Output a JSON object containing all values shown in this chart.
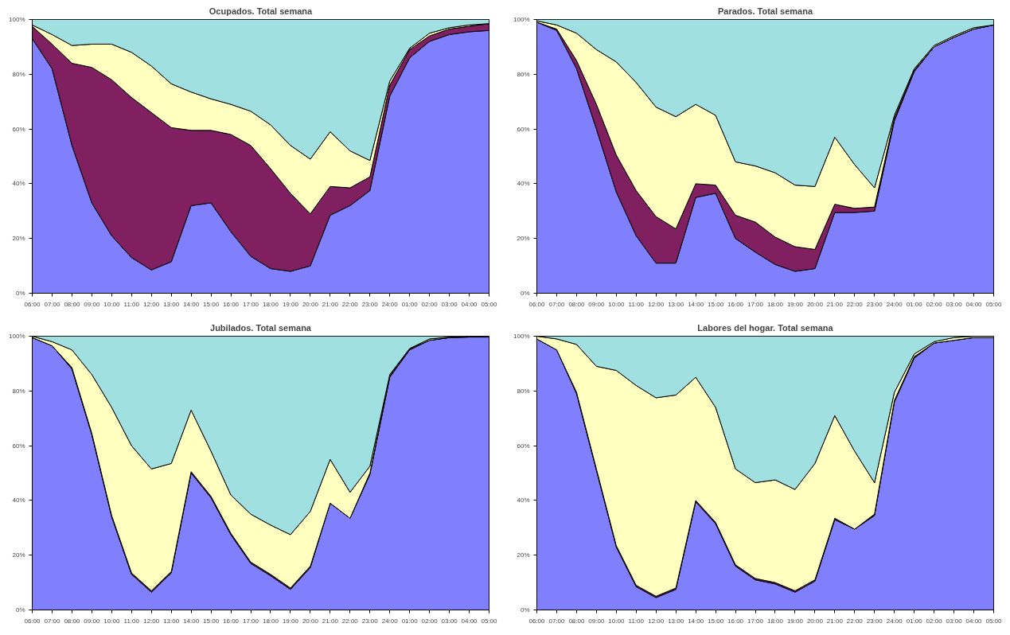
{
  "chart_data": [
    {
      "type": "area",
      "stacked": true,
      "title": "Ocupados. Total semana",
      "grid": false,
      "categories": [
        "06:00",
        "07:00",
        "08:00",
        "09:00",
        "10:00",
        "11:00",
        "12:00",
        "13:00",
        "14:00",
        "15:00",
        "16:00",
        "17:00",
        "18:00",
        "19:00",
        "20:00",
        "21:00",
        "22:00",
        "23:00",
        "24:00",
        "01:00",
        "02:00",
        "03:00",
        "04:00",
        "05:00"
      ],
      "ylim": [
        0,
        100
      ],
      "yticks": [
        {
          "value": 0,
          "label": "0%"
        },
        {
          "value": 20,
          "label": "20%"
        },
        {
          "value": 40,
          "label": "40%"
        },
        {
          "value": 60,
          "label": "60%"
        },
        {
          "value": 80,
          "label": "80%"
        },
        {
          "value": 100,
          "label": "100%"
        }
      ],
      "series": [
        {
          "color": "#8080ff",
          "values": [
            93,
            82,
            54,
            33,
            21,
            13,
            8.5,
            11.5,
            32,
            33,
            22.5,
            13.5,
            9,
            8,
            10,
            28.5,
            32,
            37.5,
            72,
            86,
            92,
            94.5,
            95.5,
            96
          ]
        },
        {
          "color": "#802060",
          "values": [
            4.5,
            9,
            30,
            49.5,
            57,
            58.5,
            57.5,
            49,
            27.5,
            26.5,
            35.5,
            40.5,
            36.5,
            28.5,
            19,
            10.5,
            6.5,
            5,
            4,
            3,
            2,
            2,
            2,
            2.5
          ]
        },
        {
          "color": "#ffffc0",
          "values": [
            0.5,
            3.5,
            6.5,
            8.5,
            13,
            16.5,
            17,
            16,
            14,
            11.5,
            11,
            12.5,
            16,
            17.5,
            20,
            20,
            13.5,
            6,
            1.5,
            0.5,
            1,
            0.5,
            0.5,
            0
          ]
        },
        {
          "color": "#a0e0e0",
          "values": [
            2,
            5.5,
            9.5,
            9,
            9,
            12,
            17,
            23.5,
            26.5,
            29,
            31,
            33.5,
            38.5,
            46,
            51,
            41,
            48,
            51.5,
            22.5,
            10.5,
            5,
            3,
            2,
            1.5
          ]
        }
      ]
    },
    {
      "type": "area",
      "stacked": true,
      "title": "Parados. Total semana",
      "grid": false,
      "categories": [
        "06:00",
        "07:00",
        "08:00",
        "09:00",
        "10:00",
        "11:00",
        "12:00",
        "13:00",
        "14:00",
        "15:00",
        "16:00",
        "17:00",
        "18:00",
        "19:00",
        "20:00",
        "21:00",
        "22:00",
        "23:00",
        "24:00",
        "01:00",
        "02:00",
        "03:00",
        "04:00",
        "05:00"
      ],
      "ylim": [
        0,
        100
      ],
      "yticks": [
        {
          "value": 0,
          "label": "0%"
        },
        {
          "value": 20,
          "label": "20%"
        },
        {
          "value": 40,
          "label": "40%"
        },
        {
          "value": 60,
          "label": "60%"
        },
        {
          "value": 80,
          "label": "80%"
        },
        {
          "value": 100,
          "label": "100%"
        }
      ],
      "series": [
        {
          "color": "#8080ff",
          "values": [
            99,
            96,
            82,
            60,
            37,
            21,
            11,
            11,
            35,
            36.5,
            20,
            15,
            10.5,
            8,
            9,
            29.5,
            29.5,
            30,
            63,
            81,
            90,
            93.5,
            96.5,
            98
          ]
        },
        {
          "color": "#802060",
          "values": [
            0,
            0.5,
            3,
            9,
            13.5,
            16.5,
            17,
            12.5,
            5,
            3,
            8.5,
            11,
            10,
            9,
            7,
            3,
            1.5,
            1.5,
            1,
            0.5,
            0,
            0,
            0,
            0
          ]
        },
        {
          "color": "#ffffc0",
          "values": [
            0.5,
            1.5,
            10,
            20,
            34,
            39.5,
            40,
            41,
            29,
            25.5,
            19.5,
            20.5,
            23.5,
            22.5,
            23,
            24.5,
            16,
            7,
            1,
            0.5,
            0.5,
            0.5,
            0.5,
            0
          ]
        },
        {
          "color": "#a0e0e0",
          "values": [
            0.5,
            2,
            5,
            11,
            15.5,
            23,
            32,
            35.5,
            31,
            35,
            52,
            53.5,
            56,
            60.5,
            61,
            43,
            53,
            61.5,
            35,
            18,
            9.5,
            6,
            3,
            2
          ]
        }
      ]
    },
    {
      "type": "area",
      "stacked": true,
      "title": "Jubilados. Total semana",
      "grid": false,
      "categories": [
        "06:00",
        "07:00",
        "08:00",
        "09:00",
        "10:00",
        "11:00",
        "12:00",
        "13:00",
        "14:00",
        "15:00",
        "16:00",
        "17:00",
        "18:00",
        "19:00",
        "20:00",
        "21:00",
        "22:00",
        "23:00",
        "24:00",
        "01:00",
        "02:00",
        "03:00",
        "04:00",
        "05:00"
      ],
      "ylim": [
        0,
        100
      ],
      "yticks": [
        {
          "value": 0,
          "label": "0%"
        },
        {
          "value": 20,
          "label": "20%"
        },
        {
          "value": 40,
          "label": "40%"
        },
        {
          "value": 60,
          "label": "60%"
        },
        {
          "value": 80,
          "label": "80%"
        },
        {
          "value": 100,
          "label": "100%"
        }
      ],
      "series": [
        {
          "color": "#8080ff",
          "values": [
            99.5,
            96.5,
            88,
            64,
            34,
            13,
            6.5,
            13.5,
            50,
            41,
            27.5,
            17,
            12.5,
            7.5,
            15.5,
            39,
            33.5,
            49.5,
            85,
            95,
            98.5,
            99.5,
            99.7,
            99.7
          ]
        },
        {
          "color": "#802060",
          "values": [
            0,
            0,
            0.5,
            0.5,
            0.5,
            0.5,
            0.5,
            0.5,
            0.5,
            0.5,
            0.5,
            0.5,
            0.5,
            0.5,
            0.5,
            0,
            0,
            0.5,
            0.5,
            0.3,
            0,
            0,
            0,
            0
          ]
        },
        {
          "color": "#ffffc0",
          "values": [
            0.5,
            1.5,
            6.5,
            21.5,
            39.5,
            46.5,
            44.5,
            39.5,
            22.5,
            16.5,
            14,
            17.5,
            18,
            19.5,
            20,
            16,
            9.5,
            2.5,
            0.5,
            0.2,
            0.5,
            0.2,
            0.3,
            0.3
          ]
        },
        {
          "color": "#a0e0e0",
          "values": [
            0,
            2,
            5,
            14,
            26,
            40,
            48.5,
            46.5,
            27,
            42,
            58,
            65,
            69,
            72.5,
            64,
            45,
            57,
            47.5,
            14,
            4.5,
            1,
            0.3,
            0,
            0
          ]
        }
      ]
    },
    {
      "type": "area",
      "stacked": true,
      "title": "Labores del hogar. Total semana",
      "grid": false,
      "categories": [
        "06:00",
        "07:00",
        "08:00",
        "09:00",
        "10:00",
        "11:00",
        "12:00",
        "13:00",
        "14:00",
        "15:00",
        "16:00",
        "17:00",
        "18:00",
        "19:00",
        "20:00",
        "21:00",
        "22:00",
        "23:00",
        "24:00",
        "01:00",
        "02:00",
        "03:00",
        "04:00",
        "05:00"
      ],
      "ylim": [
        0,
        100
      ],
      "yticks": [
        {
          "value": 0,
          "label": "0%"
        },
        {
          "value": 20,
          "label": "20%"
        },
        {
          "value": 40,
          "label": "40%"
        },
        {
          "value": 60,
          "label": "60%"
        },
        {
          "value": 80,
          "label": "80%"
        },
        {
          "value": 100,
          "label": "100%"
        }
      ],
      "series": [
        {
          "color": "#8080ff",
          "values": [
            99,
            95,
            79,
            51,
            23,
            8.5,
            4.5,
            7.5,
            39.5,
            31.5,
            16,
            11,
            9.5,
            6.5,
            10.5,
            33,
            29.5,
            34.5,
            76,
            92,
            97.5,
            98.5,
            99.5,
            99.5
          ]
        },
        {
          "color": "#802060",
          "values": [
            0,
            0,
            0.5,
            0.5,
            0.5,
            0.5,
            0.5,
            0.5,
            0.5,
            0.5,
            0.5,
            0.5,
            0.5,
            0.5,
            0.5,
            0.5,
            0,
            0.5,
            0.5,
            0.5,
            0,
            0,
            0,
            0
          ]
        },
        {
          "color": "#ffffc0",
          "values": [
            1,
            4,
            17.5,
            37.5,
            64,
            73,
            72.5,
            70.5,
            45,
            42,
            35,
            35,
            37.5,
            37,
            42.5,
            37.5,
            28.5,
            11.5,
            3,
            1,
            0.5,
            1,
            0.5,
            0.5
          ]
        },
        {
          "color": "#a0e0e0",
          "values": [
            0,
            1,
            3,
            11,
            12.5,
            18,
            22.5,
            21.5,
            15,
            26,
            48.5,
            53.5,
            52.5,
            56,
            46.5,
            29,
            42,
            53.5,
            20.5,
            6.5,
            2,
            0.5,
            0,
            0
          ]
        }
      ]
    }
  ]
}
